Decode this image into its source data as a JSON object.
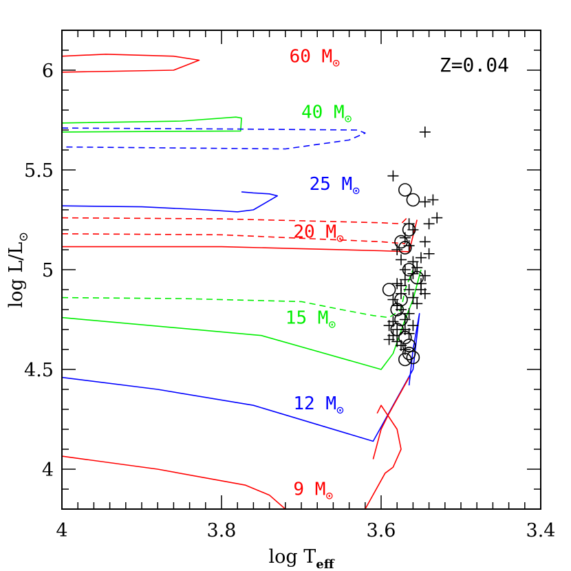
{
  "chart_data": {
    "type": "line",
    "xlabel": "log T",
    "xlabel_sub": "eff",
    "ylabel": "log L/L",
    "ylabel_sub": "⊙",
    "xlim": [
      4.0,
      3.4
    ],
    "ylim": [
      3.8,
      6.2
    ],
    "x_ticks": [
      "4",
      "3.8",
      "3.6",
      "3.4"
    ],
    "y_ticks": [
      "4",
      "4.5",
      "5",
      "5.5",
      "6"
    ],
    "annotation": "Z=0.04",
    "colors": {
      "red": "#ff0000",
      "green": "#00ee00",
      "blue": "#0000ff",
      "black": "#000000"
    },
    "series": [
      {
        "name": "60 M⊙",
        "label_main": "60 M",
        "label_sym": "⊙",
        "color": "#ff0000",
        "dash": false,
        "label_pos": [
          3.715,
          6.04
        ],
        "x": [
          4.0,
          3.945,
          3.86,
          3.828,
          3.86,
          4.0
        ],
        "y": [
          6.07,
          6.08,
          6.07,
          6.05,
          6.0,
          5.99
        ]
      },
      {
        "name": "40 M⊙",
        "label_main": "40 M",
        "label_sym": "⊙",
        "color": "#00ee00",
        "dash": false,
        "label_pos": [
          3.7,
          5.76
        ],
        "x": [
          4.0,
          3.85,
          3.782,
          3.775,
          3.776,
          4.0
        ],
        "y": [
          5.735,
          5.745,
          5.765,
          5.76,
          5.695,
          5.69
        ]
      },
      {
        "name": "40 M⊙ dashed",
        "color": "#0000ff",
        "dash": true,
        "x": [
          4.0,
          3.78,
          3.63,
          3.62,
          3.64,
          3.72,
          4.0
        ],
        "y": [
          5.71,
          5.705,
          5.7,
          5.685,
          5.65,
          5.605,
          5.615
        ]
      },
      {
        "name": "25 M⊙",
        "label_main": "25 M",
        "label_sym": "⊙",
        "color": "#0000ff",
        "dash": false,
        "label_pos": [
          3.69,
          5.4
        ],
        "x": [
          4.0,
          3.9,
          3.82,
          3.78,
          3.76,
          3.73,
          3.74,
          3.76,
          3.775
        ],
        "y": [
          5.32,
          5.315,
          5.3,
          5.29,
          5.3,
          5.37,
          5.38,
          5.385,
          5.39
        ]
      },
      {
        "name": "20 M⊙ dashed",
        "label_main": "20 M",
        "label_sym": "⊙",
        "color": "#ff0000",
        "dash": true,
        "label_pos": [
          3.71,
          5.16
        ],
        "x": [
          4.0,
          3.8,
          3.6,
          3.575,
          3.565
        ],
        "y": [
          5.26,
          5.255,
          5.235,
          5.23,
          5.27
        ]
      },
      {
        "name": "20 M⊙ dashed lower",
        "color": "#ff0000",
        "dash": true,
        "x": [
          4.0,
          3.8,
          3.6,
          3.57
        ],
        "y": [
          5.18,
          5.175,
          5.14,
          5.13
        ]
      },
      {
        "name": "20 M⊙ solid",
        "color": "#ff0000",
        "dash": false,
        "x": [
          4.0,
          3.8,
          3.6,
          3.565,
          3.555
        ],
        "y": [
          5.115,
          5.115,
          5.095,
          5.09,
          5.25
        ]
      },
      {
        "name": "15 M⊙ dashed",
        "label_main": "15 M",
        "label_sym": "⊙",
        "color": "#00ee00",
        "dash": true,
        "label_pos": [
          3.72,
          4.73
        ],
        "x": [
          4.0,
          3.85,
          3.7,
          3.65,
          3.61,
          3.59,
          3.575,
          3.57,
          3.56
        ],
        "y": [
          4.86,
          4.855,
          4.84,
          4.8,
          4.77,
          4.76,
          4.8,
          4.9,
          5.0
        ]
      },
      {
        "name": "15 M⊙ solid",
        "color": "#00ee00",
        "dash": false,
        "x": [
          4.0,
          3.75,
          3.6,
          3.585,
          3.57,
          3.56,
          3.55
        ],
        "y": [
          4.76,
          4.67,
          4.5,
          4.58,
          4.75,
          4.85,
          5.0
        ]
      },
      {
        "name": "12 M⊙",
        "label_main": "12 M",
        "label_sym": "⊙",
        "color": "#0000ff",
        "dash": false,
        "label_pos": [
          3.71,
          4.3
        ],
        "x": [
          4.0,
          3.88,
          3.76,
          3.61,
          3.56,
          3.552,
          3.56,
          3.565
        ],
        "y": [
          4.46,
          4.4,
          4.32,
          4.14,
          4.5,
          4.78,
          4.6,
          4.42
        ]
      },
      {
        "name": "9 M⊙",
        "label_main": "9 M",
        "label_sym": "⊙",
        "color": "#ff0000",
        "dash": false,
        "label_pos": [
          3.71,
          3.87
        ],
        "x": [
          4.0,
          3.88,
          3.77,
          3.74,
          3.72
        ],
        "y": [
          4.065,
          4.0,
          3.92,
          3.87,
          3.8
        ]
      },
      {
        "name": "9 M⊙ tail",
        "color": "#ff0000",
        "dash": false,
        "x": [
          3.62,
          3.595,
          3.585,
          3.575,
          3.58,
          3.6,
          3.605
        ],
        "y": [
          3.8,
          3.98,
          4.01,
          4.1,
          4.2,
          4.32,
          4.28
        ]
      },
      {
        "name": "9 M⊙ tail 2",
        "color": "#ff0000",
        "dash": false,
        "x": [
          3.61,
          3.6,
          3.59,
          3.565
        ],
        "y": [
          4.05,
          4.2,
          4.28,
          4.46
        ]
      }
    ],
    "points_plus": [
      [
        3.545,
        5.69
      ],
      [
        3.585,
        5.47
      ],
      [
        3.545,
        5.34
      ],
      [
        3.535,
        5.35
      ],
      [
        3.53,
        5.26
      ],
      [
        3.54,
        5.23
      ],
      [
        3.545,
        5.14
      ],
      [
        3.56,
        5.2
      ],
      [
        3.565,
        5.23
      ],
      [
        3.58,
        5.1
      ],
      [
        3.575,
        5.05
      ],
      [
        3.57,
        5.0
      ],
      [
        3.56,
        4.98
      ],
      [
        3.55,
        5.06
      ],
      [
        3.555,
        5.01
      ],
      [
        3.545,
        4.97
      ],
      [
        3.58,
        4.93
      ],
      [
        3.57,
        4.95
      ],
      [
        3.575,
        4.88
      ],
      [
        3.565,
        4.9
      ],
      [
        3.56,
        4.86
      ],
      [
        3.55,
        4.93
      ],
      [
        3.585,
        4.85
      ],
      [
        3.58,
        4.82
      ],
      [
        3.575,
        4.8
      ],
      [
        3.57,
        4.75
      ],
      [
        3.565,
        4.78
      ],
      [
        3.585,
        4.74
      ],
      [
        3.58,
        4.7
      ],
      [
        3.585,
        4.67
      ],
      [
        3.58,
        4.64
      ],
      [
        3.575,
        4.62
      ],
      [
        3.57,
        4.6
      ],
      [
        3.565,
        4.68
      ],
      [
        3.56,
        4.72
      ],
      [
        3.57,
        4.7
      ],
      [
        3.555,
        4.83
      ],
      [
        3.545,
        4.88
      ],
      [
        3.55,
        4.9
      ],
      [
        3.575,
        4.92
      ],
      [
        3.59,
        4.72
      ],
      [
        3.59,
        4.65
      ],
      [
        3.56,
        5.04
      ],
      [
        3.565,
        5.12
      ],
      [
        3.57,
        5.16
      ],
      [
        3.54,
        5.08
      ]
    ],
    "points_circle": [
      [
        3.57,
        5.4
      ],
      [
        3.56,
        5.35
      ],
      [
        3.565,
        5.2
      ],
      [
        3.57,
        5.11
      ],
      [
        3.575,
        5.14
      ],
      [
        3.565,
        5.0
      ],
      [
        3.555,
        4.96
      ],
      [
        3.59,
        4.9
      ],
      [
        3.575,
        4.85
      ],
      [
        3.58,
        4.8
      ],
      [
        3.575,
        4.75
      ],
      [
        3.58,
        4.7
      ],
      [
        3.57,
        4.66
      ],
      [
        3.565,
        4.58
      ],
      [
        3.57,
        4.55
      ],
      [
        3.56,
        4.56
      ],
      [
        3.565,
        4.62
      ]
    ]
  }
}
